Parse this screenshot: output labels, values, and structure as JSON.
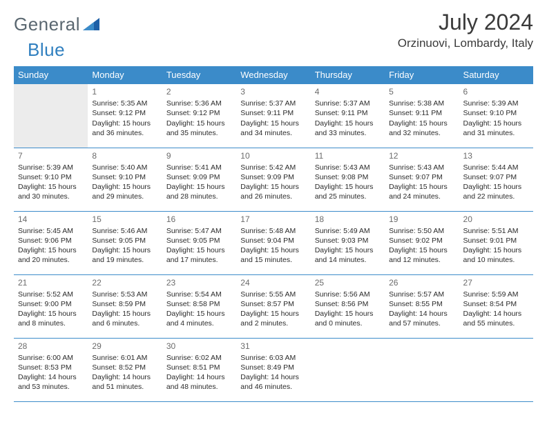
{
  "brand": {
    "left": "General",
    "right": "Blue"
  },
  "title": "July 2024",
  "location": "Orzinuovi, Lombardy, Italy",
  "colors": {
    "header_bg": "#3b8bc9",
    "header_text": "#ffffff",
    "rule": "#3b8bc9",
    "muted_bg": "#ececec"
  },
  "weekdays": [
    "Sunday",
    "Monday",
    "Tuesday",
    "Wednesday",
    "Thursday",
    "Friday",
    "Saturday"
  ],
  "weeks": [
    [
      null,
      {
        "n": "1",
        "sr": "Sunrise: 5:35 AM",
        "ss": "Sunset: 9:12 PM",
        "d1": "Daylight: 15 hours",
        "d2": "and 36 minutes."
      },
      {
        "n": "2",
        "sr": "Sunrise: 5:36 AM",
        "ss": "Sunset: 9:12 PM",
        "d1": "Daylight: 15 hours",
        "d2": "and 35 minutes."
      },
      {
        "n": "3",
        "sr": "Sunrise: 5:37 AM",
        "ss": "Sunset: 9:11 PM",
        "d1": "Daylight: 15 hours",
        "d2": "and 34 minutes."
      },
      {
        "n": "4",
        "sr": "Sunrise: 5:37 AM",
        "ss": "Sunset: 9:11 PM",
        "d1": "Daylight: 15 hours",
        "d2": "and 33 minutes."
      },
      {
        "n": "5",
        "sr": "Sunrise: 5:38 AM",
        "ss": "Sunset: 9:11 PM",
        "d1": "Daylight: 15 hours",
        "d2": "and 32 minutes."
      },
      {
        "n": "6",
        "sr": "Sunrise: 5:39 AM",
        "ss": "Sunset: 9:10 PM",
        "d1": "Daylight: 15 hours",
        "d2": "and 31 minutes."
      }
    ],
    [
      {
        "n": "7",
        "sr": "Sunrise: 5:39 AM",
        "ss": "Sunset: 9:10 PM",
        "d1": "Daylight: 15 hours",
        "d2": "and 30 minutes."
      },
      {
        "n": "8",
        "sr": "Sunrise: 5:40 AM",
        "ss": "Sunset: 9:10 PM",
        "d1": "Daylight: 15 hours",
        "d2": "and 29 minutes."
      },
      {
        "n": "9",
        "sr": "Sunrise: 5:41 AM",
        "ss": "Sunset: 9:09 PM",
        "d1": "Daylight: 15 hours",
        "d2": "and 28 minutes."
      },
      {
        "n": "10",
        "sr": "Sunrise: 5:42 AM",
        "ss": "Sunset: 9:09 PM",
        "d1": "Daylight: 15 hours",
        "d2": "and 26 minutes."
      },
      {
        "n": "11",
        "sr": "Sunrise: 5:43 AM",
        "ss": "Sunset: 9:08 PM",
        "d1": "Daylight: 15 hours",
        "d2": "and 25 minutes."
      },
      {
        "n": "12",
        "sr": "Sunrise: 5:43 AM",
        "ss": "Sunset: 9:07 PM",
        "d1": "Daylight: 15 hours",
        "d2": "and 24 minutes."
      },
      {
        "n": "13",
        "sr": "Sunrise: 5:44 AM",
        "ss": "Sunset: 9:07 PM",
        "d1": "Daylight: 15 hours",
        "d2": "and 22 minutes."
      }
    ],
    [
      {
        "n": "14",
        "sr": "Sunrise: 5:45 AM",
        "ss": "Sunset: 9:06 PM",
        "d1": "Daylight: 15 hours",
        "d2": "and 20 minutes."
      },
      {
        "n": "15",
        "sr": "Sunrise: 5:46 AM",
        "ss": "Sunset: 9:05 PM",
        "d1": "Daylight: 15 hours",
        "d2": "and 19 minutes."
      },
      {
        "n": "16",
        "sr": "Sunrise: 5:47 AM",
        "ss": "Sunset: 9:05 PM",
        "d1": "Daylight: 15 hours",
        "d2": "and 17 minutes."
      },
      {
        "n": "17",
        "sr": "Sunrise: 5:48 AM",
        "ss": "Sunset: 9:04 PM",
        "d1": "Daylight: 15 hours",
        "d2": "and 15 minutes."
      },
      {
        "n": "18",
        "sr": "Sunrise: 5:49 AM",
        "ss": "Sunset: 9:03 PM",
        "d1": "Daylight: 15 hours",
        "d2": "and 14 minutes."
      },
      {
        "n": "19",
        "sr": "Sunrise: 5:50 AM",
        "ss": "Sunset: 9:02 PM",
        "d1": "Daylight: 15 hours",
        "d2": "and 12 minutes."
      },
      {
        "n": "20",
        "sr": "Sunrise: 5:51 AM",
        "ss": "Sunset: 9:01 PM",
        "d1": "Daylight: 15 hours",
        "d2": "and 10 minutes."
      }
    ],
    [
      {
        "n": "21",
        "sr": "Sunrise: 5:52 AM",
        "ss": "Sunset: 9:00 PM",
        "d1": "Daylight: 15 hours",
        "d2": "and 8 minutes."
      },
      {
        "n": "22",
        "sr": "Sunrise: 5:53 AM",
        "ss": "Sunset: 8:59 PM",
        "d1": "Daylight: 15 hours",
        "d2": "and 6 minutes."
      },
      {
        "n": "23",
        "sr": "Sunrise: 5:54 AM",
        "ss": "Sunset: 8:58 PM",
        "d1": "Daylight: 15 hours",
        "d2": "and 4 minutes."
      },
      {
        "n": "24",
        "sr": "Sunrise: 5:55 AM",
        "ss": "Sunset: 8:57 PM",
        "d1": "Daylight: 15 hours",
        "d2": "and 2 minutes."
      },
      {
        "n": "25",
        "sr": "Sunrise: 5:56 AM",
        "ss": "Sunset: 8:56 PM",
        "d1": "Daylight: 15 hours",
        "d2": "and 0 minutes."
      },
      {
        "n": "26",
        "sr": "Sunrise: 5:57 AM",
        "ss": "Sunset: 8:55 PM",
        "d1": "Daylight: 14 hours",
        "d2": "and 57 minutes."
      },
      {
        "n": "27",
        "sr": "Sunrise: 5:59 AM",
        "ss": "Sunset: 8:54 PM",
        "d1": "Daylight: 14 hours",
        "d2": "and 55 minutes."
      }
    ],
    [
      {
        "n": "28",
        "sr": "Sunrise: 6:00 AM",
        "ss": "Sunset: 8:53 PM",
        "d1": "Daylight: 14 hours",
        "d2": "and 53 minutes."
      },
      {
        "n": "29",
        "sr": "Sunrise: 6:01 AM",
        "ss": "Sunset: 8:52 PM",
        "d1": "Daylight: 14 hours",
        "d2": "and 51 minutes."
      },
      {
        "n": "30",
        "sr": "Sunrise: 6:02 AM",
        "ss": "Sunset: 8:51 PM",
        "d1": "Daylight: 14 hours",
        "d2": "and 48 minutes."
      },
      {
        "n": "31",
        "sr": "Sunrise: 6:03 AM",
        "ss": "Sunset: 8:49 PM",
        "d1": "Daylight: 14 hours",
        "d2": "and 46 minutes."
      },
      null,
      null,
      null
    ]
  ]
}
